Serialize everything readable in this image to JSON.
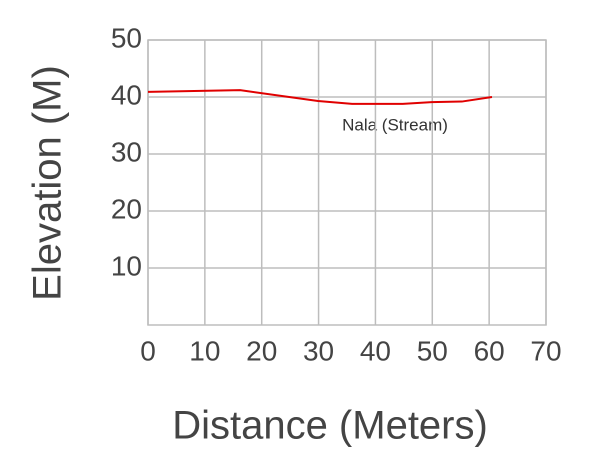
{
  "chart_data": {
    "type": "line",
    "xlabel": "Distance (Meters)",
    "ylabel": "Elevation (M)",
    "annotation": "Nala (Stream)",
    "x": [
      0,
      16.2,
      29.9,
      35.9,
      44.8,
      49.9,
      55.2,
      60.5
    ],
    "series": [
      {
        "name": "Nala (Stream)",
        "color": "#e00000",
        "values": [
          40.9,
          41.2,
          39.3,
          38.8,
          38.8,
          39.1,
          39.2,
          40.0
        ]
      }
    ],
    "xlim": [
      0,
      70
    ],
    "xticks": [
      0,
      10,
      20,
      30,
      40,
      50,
      60,
      70
    ],
    "ylim": [
      0,
      50
    ],
    "yticks": [
      10,
      20,
      30,
      40,
      50
    ],
    "grid": true
  }
}
